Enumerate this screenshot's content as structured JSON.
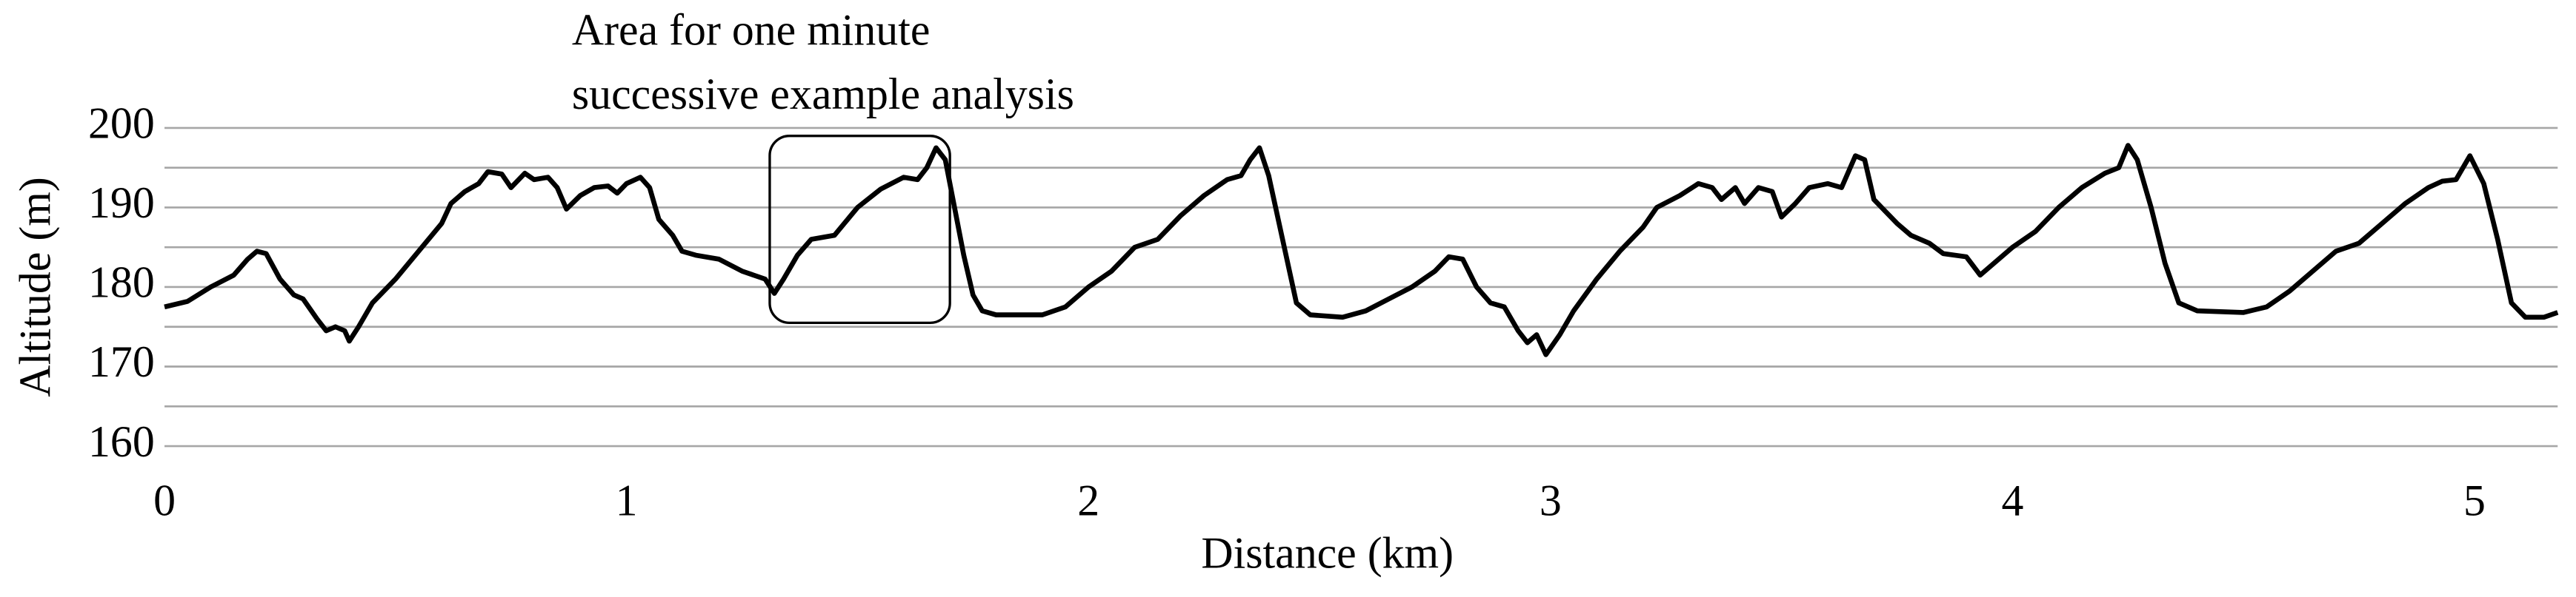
{
  "chart_data": {
    "type": "line",
    "annotation": [
      "Area for one minute",
      "successive example analysis"
    ],
    "highlight": {
      "x": [
        1.31,
        1.7
      ],
      "y": [
        175.5,
        199
      ]
    },
    "xlabel": "Distance (km)",
    "ylabel": "Altitude (m)",
    "xlim": [
      0,
      5.18
    ],
    "ylim": [
      160,
      200
    ],
    "xticks": [
      0,
      1,
      2,
      3,
      4,
      5
    ],
    "yticks": [
      160,
      170,
      180,
      190,
      200
    ],
    "ygrid": [
      160,
      165,
      170,
      175,
      180,
      185,
      190,
      195,
      200
    ],
    "grid": true,
    "color": "#000000",
    "x": [
      0,
      0.05,
      0.1,
      0.15,
      0.18,
      0.2,
      0.22,
      0.25,
      0.28,
      0.3,
      0.33,
      0.35,
      0.37,
      0.39,
      0.4,
      0.42,
      0.45,
      0.5,
      0.55,
      0.6,
      0.62,
      0.65,
      0.68,
      0.7,
      0.73,
      0.75,
      0.78,
      0.8,
      0.83,
      0.85,
      0.87,
      0.9,
      0.93,
      0.96,
      0.98,
      1.0,
      1.03,
      1.05,
      1.07,
      1.1,
      1.12,
      1.15,
      1.2,
      1.25,
      1.3,
      1.32,
      1.34,
      1.37,
      1.4,
      1.45,
      1.5,
      1.55,
      1.6,
      1.63,
      1.65,
      1.67,
      1.69,
      1.71,
      1.73,
      1.75,
      1.77,
      1.8,
      1.85,
      1.9,
      1.95,
      2.0,
      2.05,
      2.1,
      2.15,
      2.2,
      2.25,
      2.3,
      2.33,
      2.35,
      2.37,
      2.39,
      2.42,
      2.45,
      2.48,
      2.55,
      2.6,
      2.65,
      2.7,
      2.75,
      2.78,
      2.81,
      2.84,
      2.87,
      2.9,
      2.93,
      2.95,
      2.97,
      2.99,
      3.02,
      3.05,
      3.1,
      3.15,
      3.2,
      3.23,
      3.28,
      3.32,
      3.35,
      3.37,
      3.4,
      3.42,
      3.45,
      3.48,
      3.5,
      3.53,
      3.56,
      3.6,
      3.63,
      3.66,
      3.68,
      3.7,
      3.75,
      3.78,
      3.82,
      3.85,
      3.9,
      3.93,
      3.96,
      4.0,
      4.05,
      4.1,
      4.15,
      4.2,
      4.23,
      4.25,
      4.27,
      4.3,
      4.33,
      4.36,
      4.4,
      4.5,
      4.55,
      4.6,
      4.65,
      4.7,
      4.75,
      4.8,
      4.85,
      4.9,
      4.93,
      4.96,
      4.99,
      5.02,
      5.05,
      5.08,
      5.11,
      5.15,
      5.18
    ],
    "values": [
      177.5,
      178.2,
      180,
      181.5,
      183.5,
      184.5,
      184.2,
      181,
      179,
      178.5,
      176,
      174.5,
      175,
      174.5,
      173.2,
      175,
      178,
      181,
      184.5,
      188,
      190.5,
      192,
      193,
      194.5,
      194.2,
      192.5,
      194.3,
      193.5,
      193.8,
      192.5,
      189.8,
      191.5,
      192.5,
      192.7,
      191.8,
      193,
      193.8,
      192.5,
      188.5,
      186.5,
      184.5,
      184,
      183.5,
      182,
      181,
      179.2,
      181,
      184,
      186,
      186.5,
      190,
      192.3,
      193.8,
      193.5,
      195,
      197.5,
      196,
      190,
      184,
      179,
      177,
      176.5,
      176.5,
      176.5,
      177.5,
      180,
      182,
      185,
      186,
      189,
      191.5,
      193.5,
      194,
      196,
      197.5,
      194,
      186,
      178,
      176.5,
      176.2,
      177,
      178.5,
      180,
      182,
      183.8,
      183.5,
      180,
      178,
      177.5,
      174.5,
      173,
      174,
      171.5,
      174,
      177,
      181,
      184.5,
      187.5,
      190,
      191.5,
      193,
      192.5,
      191,
      192.5,
      190.5,
      192.5,
      192,
      188.8,
      190.5,
      192.5,
      193,
      192.5,
      196.5,
      196,
      191,
      188,
      186.5,
      185.5,
      184.2,
      183.8,
      181.5,
      183,
      185,
      187,
      190,
      192.5,
      194.3,
      195,
      197.8,
      196,
      190,
      183,
      178,
      177,
      176.8,
      177.5,
      179.5,
      182,
      184.5,
      185.5,
      188,
      190.5,
      192.5,
      193.3,
      193.5,
      196.5,
      193,
      186,
      178,
      176.2,
      176.2,
      176.8
    ]
  }
}
